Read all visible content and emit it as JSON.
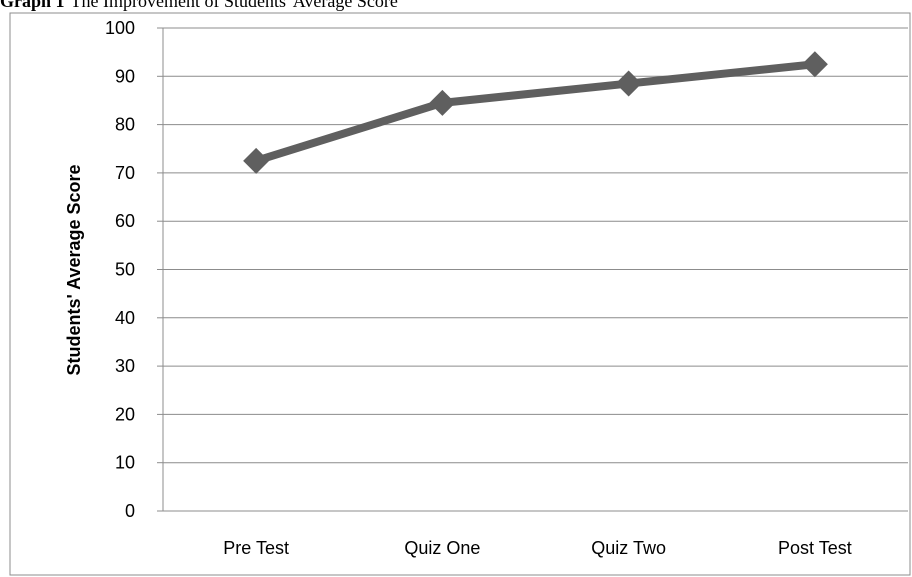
{
  "caption": {
    "label": "Graph 1",
    "text": "The Improvement of Students' Average Score"
  },
  "colors": {
    "series": "#5f5f5f",
    "gridline": "#8c8c8c",
    "frame": "#8c8c8c",
    "axis": "#8c8c8c"
  },
  "chart_data": {
    "type": "line",
    "title": "",
    "xlabel": "",
    "ylabel": "Students' Average Score",
    "categories": [
      "Pre Test",
      "Quiz One",
      "Quiz Two",
      "Post Test"
    ],
    "series": [
      {
        "values": [
          72.5,
          84.5,
          88.5,
          92.5
        ],
        "marker": "diamond"
      }
    ],
    "ylim": [
      0,
      100
    ],
    "yticks": [
      0,
      10,
      20,
      30,
      40,
      50,
      60,
      70,
      80,
      90,
      100
    ],
    "ytick_labels": [
      "0",
      "10",
      "20",
      "30",
      "40",
      "50",
      "60",
      "70",
      "80",
      "90",
      "100"
    ],
    "grid": true,
    "legend": "none"
  }
}
